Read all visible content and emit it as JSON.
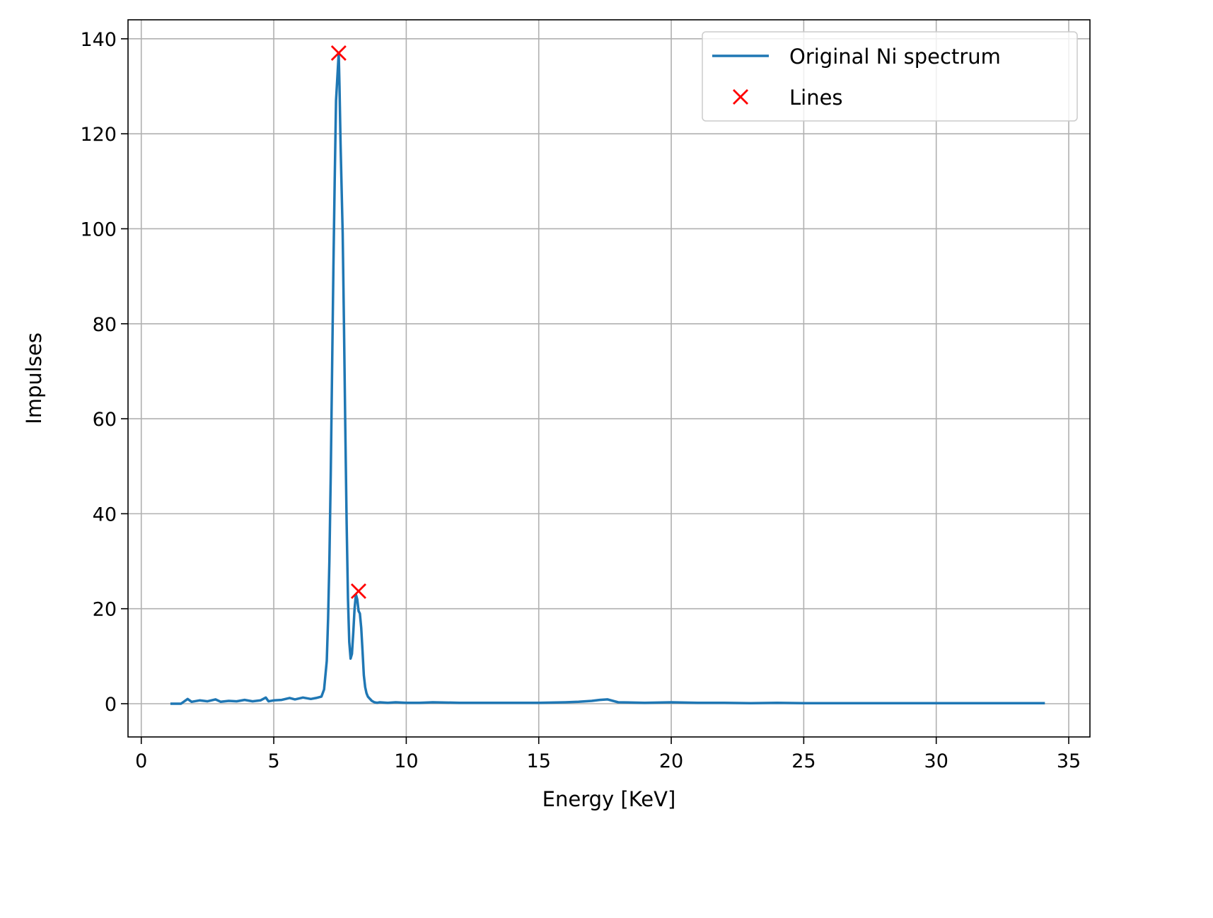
{
  "chart_data": {
    "type": "line",
    "xlabel": "Energy [KeV]",
    "ylabel": "Impulses",
    "xlim": [
      -0.5,
      35.8
    ],
    "ylim": [
      -7,
      144
    ],
    "xticks": [
      0,
      5,
      10,
      15,
      20,
      25,
      30,
      35
    ],
    "yticks": [
      0,
      20,
      40,
      60,
      80,
      100,
      120,
      140
    ],
    "xtick_labels": [
      "0",
      "5",
      "10",
      "15",
      "20",
      "25",
      "30",
      "35"
    ],
    "ytick_labels": [
      "0",
      "20",
      "40",
      "60",
      "80",
      "100",
      "120",
      "140"
    ],
    "grid": true,
    "legend_position": "top-right",
    "colors": {
      "spectrum": "#1f77b4",
      "lines": "#ff0000",
      "grid": "#b0b0b0"
    },
    "series": [
      {
        "name": "Original Ni spectrum",
        "kind": "line",
        "x": [
          1.1,
          1.5,
          1.75,
          1.9,
          2.2,
          2.5,
          2.8,
          3.0,
          3.3,
          3.6,
          3.9,
          4.2,
          4.5,
          4.7,
          4.8,
          5.0,
          5.3,
          5.6,
          5.8,
          6.1,
          6.4,
          6.6,
          6.8,
          6.9,
          7.0,
          7.05,
          7.1,
          7.15,
          7.2,
          7.25,
          7.3,
          7.35,
          7.4,
          7.45,
          7.48,
          7.52,
          7.55,
          7.6,
          7.65,
          7.7,
          7.75,
          7.8,
          7.85,
          7.9,
          7.95,
          8.0,
          8.05,
          8.1,
          8.15,
          8.2,
          8.25,
          8.3,
          8.35,
          8.4,
          8.45,
          8.5,
          8.55,
          8.6,
          8.7,
          8.8,
          8.9,
          9.0,
          9.3,
          9.6,
          10.0,
          10.5,
          11.0,
          12.0,
          13.0,
          14.0,
          15.0,
          16.0,
          16.5,
          17.0,
          17.3,
          17.6,
          18.0,
          19.0,
          20.0,
          21.0,
          22.0,
          23.0,
          24.0,
          25.0,
          27.0,
          30.0,
          32.0,
          34.1
        ],
        "y": [
          0,
          0,
          1.0,
          0.4,
          0.7,
          0.5,
          0.9,
          0.4,
          0.6,
          0.5,
          0.8,
          0.5,
          0.7,
          1.3,
          0.5,
          0.7,
          0.8,
          1.2,
          0.9,
          1.3,
          1.0,
          1.2,
          1.5,
          3.0,
          9.0,
          18.0,
          30.0,
          48.0,
          70.0,
          92.0,
          110.0,
          127.0,
          132.0,
          137.0,
          130.0,
          118.0,
          111.0,
          99.0,
          80.0,
          58.0,
          38.0,
          22.0,
          13.0,
          9.5,
          10.5,
          15.0,
          20.0,
          23.0,
          22.0,
          19.5,
          19.0,
          16.0,
          11.0,
          6.0,
          3.5,
          2.2,
          1.5,
          1.2,
          0.6,
          0.3,
          0.2,
          0.3,
          0.2,
          0.3,
          0.2,
          0.2,
          0.3,
          0.2,
          0.2,
          0.2,
          0.2,
          0.3,
          0.4,
          0.6,
          0.8,
          0.9,
          0.3,
          0.2,
          0.3,
          0.2,
          0.2,
          0.1,
          0.2,
          0.1,
          0.1,
          0.1,
          0.1,
          0.1
        ]
      },
      {
        "name": "Lines",
        "kind": "marker",
        "x": [
          7.45,
          8.2
        ],
        "y": [
          137.0,
          23.7
        ]
      }
    ]
  }
}
